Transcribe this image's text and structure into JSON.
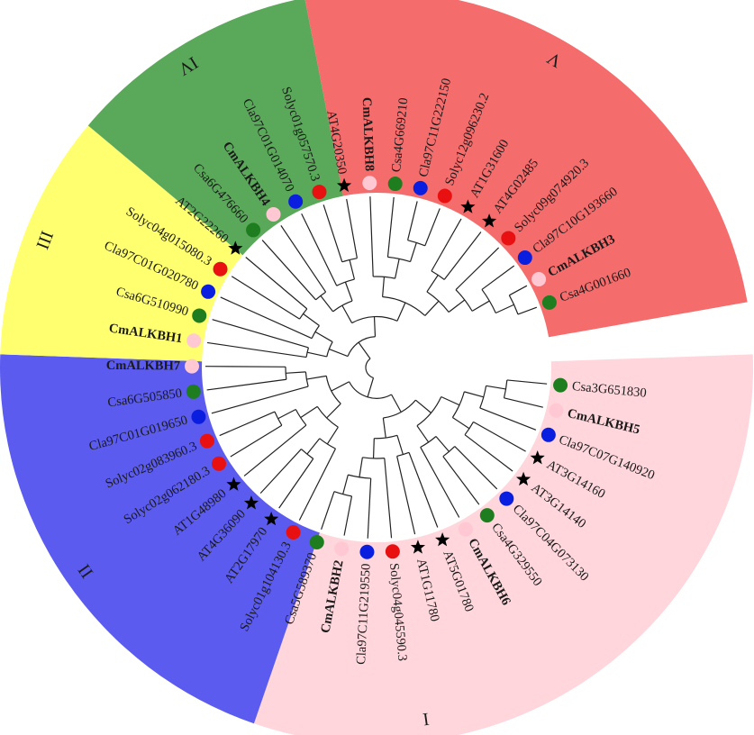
{
  "tree": {
    "groups": [
      {
        "label": "I",
        "color": "#ffd6dc"
      },
      {
        "label": "II",
        "color": "#5b5bf0"
      },
      {
        "label": "III",
        "color": "#ffff70"
      },
      {
        "label": "IV",
        "color": "#5aa85a"
      },
      {
        "label": "V",
        "color": "#f56c6c"
      }
    ],
    "species_markers": {
      "Csa": {
        "shape": "circle",
        "color": "#1e7d1e"
      },
      "CmALKBH": {
        "shape": "circle",
        "color": "#ffc8d2"
      },
      "Cla": {
        "shape": "circle",
        "color": "#0a1ee0"
      },
      "Solyc": {
        "shape": "circle",
        "color": "#e81010"
      },
      "AT": {
        "shape": "star",
        "color": "#000000"
      }
    },
    "leaves": [
      {
        "name": "Csa3G651830",
        "marker": "Csa",
        "bold": false,
        "group": 0
      },
      {
        "name": "CmALKBH5",
        "marker": "CmALKBH",
        "bold": true,
        "group": 0
      },
      {
        "name": "Cla97C07G140920",
        "marker": "Cla",
        "bold": false,
        "group": 0
      },
      {
        "name": "AT3G14160",
        "marker": "AT",
        "bold": false,
        "group": 0
      },
      {
        "name": "AT3G14140",
        "marker": "AT",
        "bold": false,
        "group": 0
      },
      {
        "name": "Cla97C04G073130",
        "marker": "Cla",
        "bold": false,
        "group": 0
      },
      {
        "name": "Csa4G329550",
        "marker": "Csa",
        "bold": false,
        "group": 0
      },
      {
        "name": "CmALKBH6",
        "marker": "CmALKBH",
        "bold": true,
        "group": 0
      },
      {
        "name": "AT5G01780",
        "marker": "AT",
        "bold": false,
        "group": 0
      },
      {
        "name": "AT1G11780",
        "marker": "AT",
        "bold": false,
        "group": 0
      },
      {
        "name": "Solyc04g045590.3",
        "marker": "Solyc",
        "bold": false,
        "group": 0
      },
      {
        "name": "Cla97C11G219550",
        "marker": "Cla",
        "bold": false,
        "group": 0
      },
      {
        "name": "CmALKBH2",
        "marker": "CmALKBH",
        "bold": true,
        "group": 0
      },
      {
        "name": "Csa5G589370",
        "marker": "Csa",
        "bold": false,
        "group": 0
      },
      {
        "name": "Solyc01g104130.3",
        "marker": "Solyc",
        "bold": false,
        "group": 1
      },
      {
        "name": "AT2G17970",
        "marker": "AT",
        "bold": false,
        "group": 1
      },
      {
        "name": "AT4G36090",
        "marker": "AT",
        "bold": false,
        "group": 1
      },
      {
        "name": "AT1G48980",
        "marker": "AT",
        "bold": false,
        "group": 1
      },
      {
        "name": "Solyc02g062180.3",
        "marker": "Solyc",
        "bold": false,
        "group": 1
      },
      {
        "name": "Solyc02g083960.3",
        "marker": "Solyc",
        "bold": false,
        "group": 1
      },
      {
        "name": "Cla97C01G019650",
        "marker": "Cla",
        "bold": false,
        "group": 1
      },
      {
        "name": "Csa6G505850",
        "marker": "Csa",
        "bold": false,
        "group": 1
      },
      {
        "name": "CmALKBH7",
        "marker": "CmALKBH",
        "bold": true,
        "group": 1
      },
      {
        "name": "CmALKBH1",
        "marker": "CmALKBH",
        "bold": true,
        "group": 2
      },
      {
        "name": "Csa6G510990",
        "marker": "Csa",
        "bold": false,
        "group": 2
      },
      {
        "name": "Cla97C01G020780",
        "marker": "Cla",
        "bold": false,
        "group": 2
      },
      {
        "name": "Solyc04g015080.3",
        "marker": "Solyc",
        "bold": false,
        "group": 2
      },
      {
        "name": "AT2G22260",
        "marker": "AT",
        "bold": false,
        "group": 2
      },
      {
        "name": "Csa6G476660",
        "marker": "Csa",
        "bold": false,
        "group": 3
      },
      {
        "name": "CmALKBH4",
        "marker": "CmALKBH",
        "bold": true,
        "group": 3
      },
      {
        "name": "Cla97C01G014070",
        "marker": "Cla",
        "bold": false,
        "group": 3
      },
      {
        "name": "Solyc01g057570.3",
        "marker": "Solyc",
        "bold": false,
        "group": 3
      },
      {
        "name": "AT4G20350",
        "marker": "AT",
        "bold": false,
        "group": 3
      },
      {
        "name": "CmALKBH8",
        "marker": "CmALKBH",
        "bold": true,
        "group": 4
      },
      {
        "name": "Csa4G669210",
        "marker": "Csa",
        "bold": false,
        "group": 4
      },
      {
        "name": "Cla97C11G222150",
        "marker": "Cla",
        "bold": false,
        "group": 4
      },
      {
        "name": "Solyc12g096230.2",
        "marker": "Solyc",
        "bold": false,
        "group": 4
      },
      {
        "name": "AT1G31600",
        "marker": "AT",
        "bold": false,
        "group": 4
      },
      {
        "name": "AT4G02485",
        "marker": "AT",
        "bold": false,
        "group": 4
      },
      {
        "name": "Solyc09g074920.3",
        "marker": "Solyc",
        "bold": false,
        "group": 4
      },
      {
        "name": "Cla97C10G193660",
        "marker": "Cla",
        "bold": false,
        "group": 4
      },
      {
        "name": "CmALKBH3",
        "marker": "CmALKBH",
        "bold": true,
        "group": 4
      },
      {
        "name": "Csa4G001660",
        "marker": "Csa",
        "bold": false,
        "group": 4
      }
    ]
  }
}
